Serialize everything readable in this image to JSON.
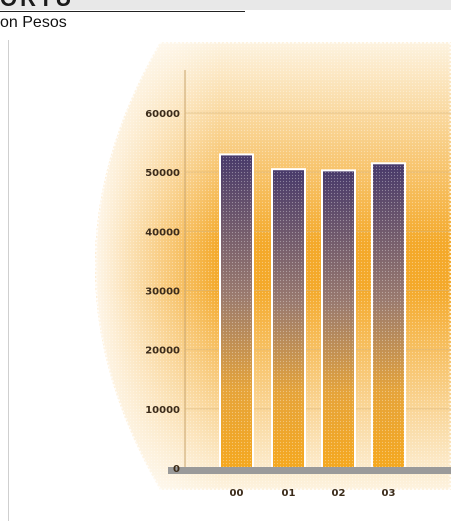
{
  "header": {
    "title_fragment": "ORTU",
    "unit_label": "on Pesos"
  },
  "chart_data": {
    "type": "bar",
    "categories": [
      "00",
      "01",
      "02",
      "03"
    ],
    "values": [
      53000,
      50500,
      50300,
      51500
    ],
    "ylim": [
      0,
      65000
    ],
    "yticks": [
      0,
      10000,
      20000,
      30000,
      40000,
      50000,
      60000
    ],
    "ytick_labels": [
      "0",
      "10000",
      "20000",
      "30000",
      "40000",
      "50000",
      "60000"
    ],
    "grid": true,
    "colors": {
      "bar_top": "#4b3f6b",
      "bar_bottom": "#f2a623",
      "background_orange": "#f6b233",
      "background_light": "#fbe7c4",
      "baseline": "#9a9a9a"
    }
  }
}
